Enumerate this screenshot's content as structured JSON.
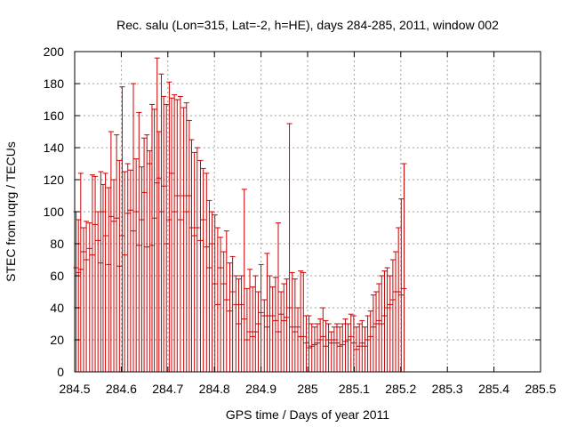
{
  "chart_data": {
    "type": "errorbar",
    "title": "Rec. salu (Lon=315, Lat=-2, h=HE), days 284-285, 2011, window 002",
    "xlabel": "GPS time / Days of year 2011",
    "ylabel": "STEC from uqrg / TECUs",
    "xlim": [
      284.5,
      285.5
    ],
    "ylim": [
      0,
      200
    ],
    "xticks": [
      284.5,
      284.6,
      284.7,
      284.8,
      284.9,
      285.0,
      285.1,
      285.2,
      285.3,
      285.4,
      285.5
    ],
    "xtick_labels": [
      "284.5",
      "284.6",
      "284.7",
      "284.8",
      "284.9",
      "285",
      "285.1",
      "285.2",
      "285.3",
      "285.4",
      "285.5"
    ],
    "yticks": [
      0,
      20,
      40,
      60,
      80,
      100,
      120,
      140,
      160,
      180,
      200
    ],
    "ytick_labels": [
      "0",
      "20",
      "40",
      "60",
      "80",
      "100",
      "120",
      "140",
      "160",
      "180",
      "200"
    ],
    "grid": true,
    "color": "#cc0000",
    "points": [
      [
        284.503,
        65,
        100
      ],
      [
        284.508,
        62,
        95
      ],
      [
        284.513,
        64,
        124
      ],
      [
        284.519,
        75,
        90
      ],
      [
        284.525,
        70,
        94
      ],
      [
        284.532,
        77,
        93
      ],
      [
        284.538,
        73,
        123
      ],
      [
        284.544,
        92,
        122
      ],
      [
        284.55,
        82,
        100
      ],
      [
        284.556,
        68,
        125
      ],
      [
        284.561,
        100,
        117
      ],
      [
        284.566,
        85,
        124
      ],
      [
        284.573,
        67,
        115
      ],
      [
        284.578,
        97,
        150
      ],
      [
        284.584,
        94,
        120
      ],
      [
        284.59,
        96,
        148
      ],
      [
        284.596,
        66,
        132
      ],
      [
        284.602,
        85,
        178
      ],
      [
        284.607,
        73,
        125
      ],
      [
        284.614,
        99,
        130
      ],
      [
        284.62,
        101,
        126
      ],
      [
        284.626,
        88,
        180
      ],
      [
        284.632,
        100,
        133
      ],
      [
        284.638,
        79,
        162
      ],
      [
        284.644,
        95,
        128
      ],
      [
        284.649,
        112,
        146
      ],
      [
        284.655,
        78,
        148
      ],
      [
        284.661,
        130,
        138
      ],
      [
        284.666,
        79,
        167
      ],
      [
        284.671,
        96,
        164
      ],
      [
        284.677,
        118,
        196
      ],
      [
        284.681,
        121,
        150
      ],
      [
        284.686,
        100,
        186
      ],
      [
        284.691,
        116,
        172
      ],
      [
        284.697,
        80,
        167
      ],
      [
        284.703,
        95,
        181
      ],
      [
        284.708,
        124,
        171
      ],
      [
        284.714,
        100,
        173
      ],
      [
        284.72,
        110,
        170
      ],
      [
        284.727,
        95,
        172
      ],
      [
        284.734,
        110,
        165
      ],
      [
        284.74,
        100,
        168
      ],
      [
        284.746,
        110,
        157
      ],
      [
        284.751,
        90,
        145
      ],
      [
        284.757,
        85,
        137
      ],
      [
        284.763,
        90,
        140
      ],
      [
        284.77,
        82,
        132
      ],
      [
        284.776,
        95,
        127
      ],
      [
        284.783,
        78,
        124
      ],
      [
        284.789,
        65,
        107
      ],
      [
        284.795,
        80,
        100
      ],
      [
        284.801,
        55,
        98
      ],
      [
        284.807,
        42,
        90
      ],
      [
        284.813,
        65,
        84
      ],
      [
        284.82,
        55,
        75
      ],
      [
        284.826,
        45,
        88
      ],
      [
        284.833,
        38,
        68
      ],
      [
        284.839,
        50,
        72
      ],
      [
        284.846,
        42,
        60
      ],
      [
        284.852,
        30,
        58
      ],
      [
        284.858,
        42,
        60
      ],
      [
        284.864,
        33,
        114
      ],
      [
        284.87,
        20,
        52
      ],
      [
        284.876,
        25,
        64
      ],
      [
        284.882,
        22,
        53
      ],
      [
        284.888,
        25,
        60
      ],
      [
        284.894,
        30,
        50
      ],
      [
        284.9,
        37,
        67
      ],
      [
        284.907,
        35,
        45
      ],
      [
        284.913,
        28,
        74
      ],
      [
        284.919,
        35,
        60
      ],
      [
        284.925,
        35,
        53
      ],
      [
        284.931,
        32,
        59
      ],
      [
        284.937,
        25,
        93
      ],
      [
        284.943,
        36,
        50
      ],
      [
        284.949,
        32,
        55
      ],
      [
        284.955,
        34,
        58
      ],
      [
        284.961,
        40,
        155
      ],
      [
        284.967,
        28,
        62
      ],
      [
        284.973,
        25,
        58
      ],
      [
        284.979,
        28,
        40
      ],
      [
        284.985,
        22,
        63
      ],
      [
        284.991,
        22,
        62
      ],
      [
        284.997,
        18,
        35
      ],
      [
        285.003,
        15,
        35
      ],
      [
        285.009,
        16,
        30
      ],
      [
        285.015,
        17,
        28
      ],
      [
        285.021,
        18,
        30
      ],
      [
        285.027,
        20,
        33
      ],
      [
        285.033,
        22,
        40
      ],
      [
        285.039,
        16,
        32
      ],
      [
        285.045,
        20,
        30
      ],
      [
        285.051,
        18,
        25
      ],
      [
        285.057,
        20,
        28
      ],
      [
        285.063,
        18,
        30
      ],
      [
        285.069,
        16,
        28
      ],
      [
        285.075,
        17,
        30
      ],
      [
        285.081,
        19,
        33
      ],
      [
        285.087,
        20,
        30
      ],
      [
        285.093,
        22,
        36
      ],
      [
        285.099,
        18,
        35
      ],
      [
        285.105,
        14,
        28
      ],
      [
        285.111,
        16,
        30
      ],
      [
        285.117,
        18,
        32
      ],
      [
        285.123,
        16,
        28
      ],
      [
        285.129,
        20,
        35
      ],
      [
        285.135,
        22,
        38
      ],
      [
        285.141,
        28,
        48
      ],
      [
        285.147,
        30,
        50
      ],
      [
        285.153,
        32,
        55
      ],
      [
        285.159,
        30,
        60
      ],
      [
        285.165,
        35,
        63
      ],
      [
        285.171,
        40,
        65
      ],
      [
        285.177,
        42,
        60
      ],
      [
        285.183,
        45,
        70
      ],
      [
        285.189,
        50,
        75
      ],
      [
        285.195,
        50,
        90
      ],
      [
        285.201,
        48,
        108
      ],
      [
        285.207,
        52,
        130
      ]
    ]
  }
}
